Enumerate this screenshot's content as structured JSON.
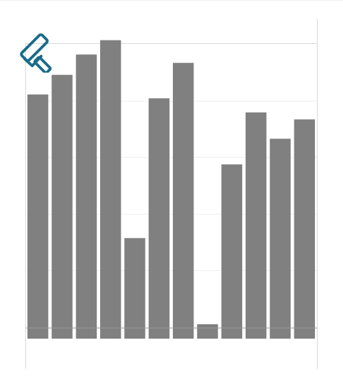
{
  "chart_data": {
    "type": "bar",
    "categories": [
      "",
      "",
      "",
      "",
      "",
      "",
      "",
      "",
      "",
      "",
      "",
      ""
    ],
    "values": [
      1020,
      1102,
      1187,
      1247,
      420,
      1004,
      1152,
      60,
      728,
      945,
      835,
      916
    ],
    "bar_color": "#808080",
    "grid": true,
    "xlabel": "",
    "ylabel": "",
    "ylim": [
      0,
      1220
    ]
  },
  "toolbar": {
    "tool_icon": "paint-roller-icon",
    "tool_color": "#1a6b8a"
  }
}
